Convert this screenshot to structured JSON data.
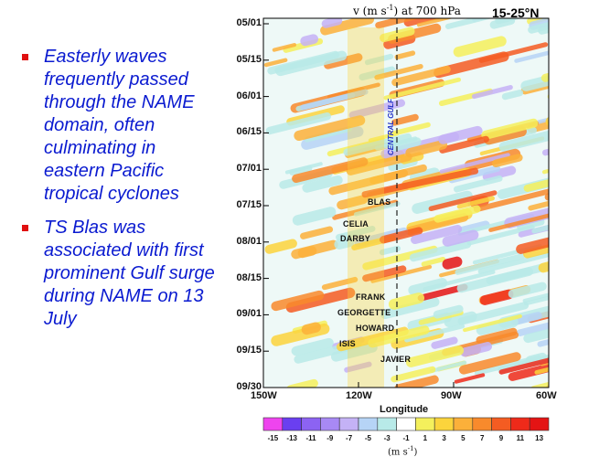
{
  "title": {
    "variable": "v (m s",
    "exponent": "-1",
    "level": ") at 700 hPa",
    "latitude": "15-25°N"
  },
  "bullets": [
    "Easterly waves frequently passed through the NAME domain, often culminating in eastern Pacific tropical cyclones",
    "TS Blas was associated with first prominent Gulf surge during NAME on 13 July"
  ],
  "y_ticks": [
    "05/01",
    "05/15",
    "06/01",
    "06/15",
    "07/01",
    "07/15",
    "08/01",
    "08/15",
    "09/01",
    "09/15",
    "09/30"
  ],
  "x_ticks": [
    "150W",
    "120W",
    "90W",
    "60W"
  ],
  "x_label": "Longitude",
  "reference_line_label": "CENTRAL GULF",
  "storms": [
    "BLAS",
    "CELIA",
    "DARBY",
    "FRANK",
    "GEORGETTE",
    "HOWARD",
    "ISIS",
    "JAVIER"
  ],
  "colorbar": {
    "ticks": [
      "-15",
      "-13",
      "-11",
      "-9",
      "-7",
      "-5",
      "-3",
      "-1",
      "1",
      "3",
      "5",
      "7",
      "9",
      "11",
      "13"
    ],
    "colors": [
      "#ee44ee",
      "#6a3ff0",
      "#8c63f2",
      "#a889f4",
      "#c4b2f6",
      "#b6d4f6",
      "#b8eae8",
      "#ffffff",
      "#f4f05c",
      "#fbd43c",
      "#fbb03a",
      "#f88a2c",
      "#f45c22",
      "#ee2a1a",
      "#e41414"
    ],
    "units_prefix": "(m s",
    "units_exponent": "-1",
    "units_suffix": ")"
  },
  "chart_data": {
    "type": "heatmap",
    "title": "v (m s-1) at 700 hPa",
    "subtitle": "15-25°N",
    "xlabel": "Longitude",
    "x_ticks": [
      "150W",
      "120W",
      "90W",
      "60W"
    ],
    "y_ticks": [
      "05/01",
      "05/15",
      "06/01",
      "06/15",
      "07/01",
      "07/15",
      "08/01",
      "08/15",
      "09/01",
      "09/15",
      "09/30"
    ],
    "colorbar_levels": [
      -15,
      -13,
      -11,
      -9,
      -7,
      -5,
      -3,
      -1,
      1,
      3,
      5,
      7,
      9,
      11,
      13
    ],
    "colorbar_units": "m s-1"
  }
}
